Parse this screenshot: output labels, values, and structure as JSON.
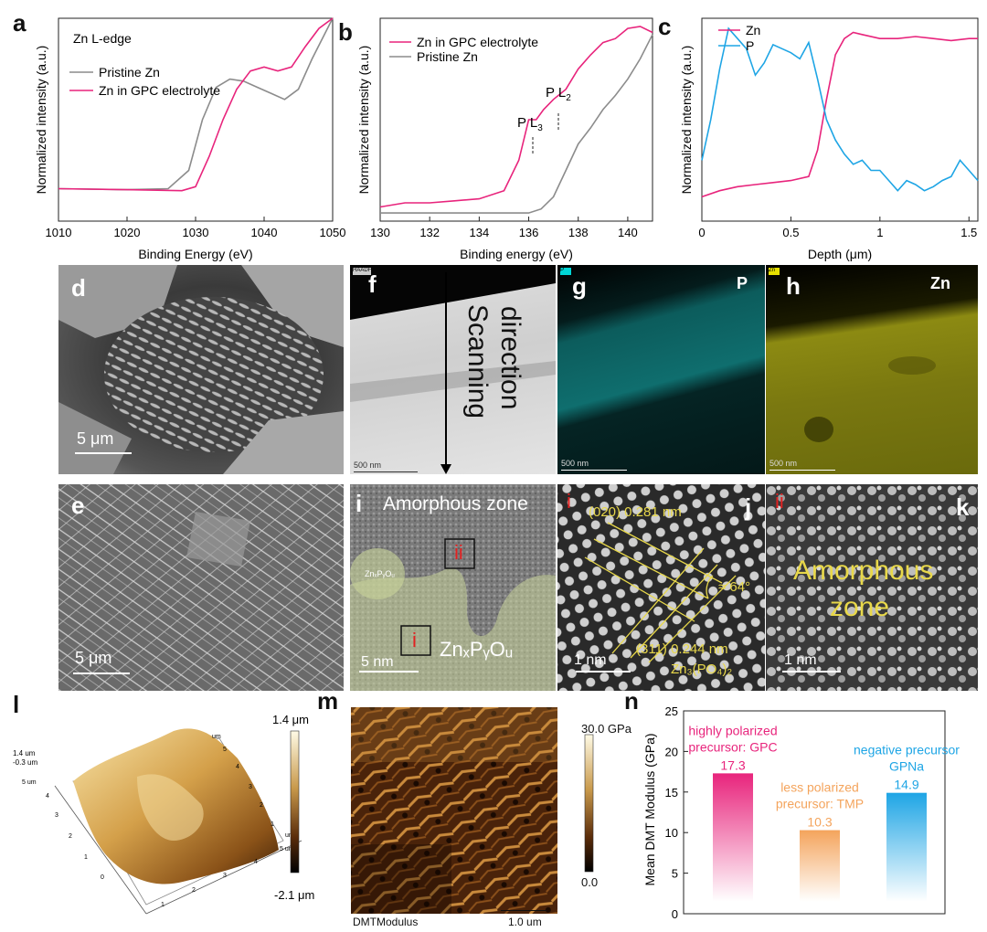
{
  "panels": {
    "a": "a",
    "b": "b",
    "c": "c",
    "d": "d",
    "e": "e",
    "f": "f",
    "g": "g",
    "h": "h",
    "i": "i",
    "j": "j",
    "k": "k",
    "l": "l",
    "m": "m",
    "n": "n"
  },
  "chart_data": [
    {
      "type": "line",
      "panel": "a",
      "title": "Zn L-edge",
      "xlabel": "Binding Energy (eV)",
      "ylabel": "Normalized intensity (a.u.)",
      "xlim": [
        1010,
        1050
      ],
      "xticks": [
        "1010",
        "1020",
        "1030",
        "1040",
        "1050"
      ],
      "series": [
        {
          "name": "Pristine Zn",
          "color": "#8c8c8c",
          "x": [
            1010,
            1020,
            1026,
            1029,
            1031,
            1033,
            1035,
            1037,
            1039,
            1041,
            1043,
            1045,
            1047,
            1050
          ],
          "y": [
            0.16,
            0.155,
            0.16,
            0.25,
            0.5,
            0.66,
            0.7,
            0.69,
            0.66,
            0.63,
            0.6,
            0.65,
            0.8,
            1.0
          ]
        },
        {
          "name": "Zn in GPC electrolyte",
          "color": "#e8247c",
          "x": [
            1010,
            1020,
            1028,
            1030,
            1032,
            1034,
            1036,
            1038,
            1040,
            1042,
            1044,
            1046,
            1048,
            1050
          ],
          "y": [
            0.16,
            0.155,
            0.15,
            0.17,
            0.32,
            0.5,
            0.65,
            0.74,
            0.76,
            0.74,
            0.76,
            0.86,
            0.95,
            1.0
          ]
        }
      ]
    },
    {
      "type": "line",
      "panel": "b",
      "xlabel": "Binding energy (eV)",
      "ylabel": "Normalized intensity (a.u.)",
      "xlim": [
        130,
        141
      ],
      "xticks": [
        "130",
        "132",
        "134",
        "136",
        "138",
        "140"
      ],
      "annotations": [
        "P L",
        "3",
        "P L",
        "2"
      ],
      "series": [
        {
          "name": "Zn in GPC electrolyte",
          "color": "#e8247c",
          "x": [
            130,
            131,
            132,
            133,
            134,
            135,
            135.6,
            136.0,
            136.3,
            136.6,
            137.0,
            137.5,
            138.0,
            138.5,
            139.0,
            139.5,
            140.0,
            140.5,
            141
          ],
          "y": [
            0.07,
            0.09,
            0.09,
            0.1,
            0.11,
            0.15,
            0.3,
            0.5,
            0.5,
            0.55,
            0.6,
            0.65,
            0.75,
            0.82,
            0.88,
            0.9,
            0.95,
            0.96,
            0.93
          ]
        },
        {
          "name": "Pristine Zn",
          "color": "#8c8c8c",
          "x": [
            130,
            132,
            134,
            136,
            136.5,
            137,
            137.5,
            138,
            138.5,
            139,
            139.5,
            140,
            140.5,
            141
          ],
          "y": [
            0.04,
            0.04,
            0.04,
            0.04,
            0.06,
            0.12,
            0.25,
            0.38,
            0.46,
            0.55,
            0.62,
            0.7,
            0.8,
            0.92
          ]
        }
      ]
    },
    {
      "type": "line",
      "panel": "c",
      "xlabel": "Depth (μm)",
      "ylabel": "Normalized intensity (a.u.)",
      "xlim": [
        0,
        1.55
      ],
      "xticks": [
        "0",
        "0.5",
        "1",
        "1.5"
      ],
      "series": [
        {
          "name": "Zn",
          "color": "#e8247c",
          "x": [
            0,
            0.1,
            0.2,
            0.3,
            0.4,
            0.5,
            0.6,
            0.65,
            0.7,
            0.75,
            0.8,
            0.85,
            0.9,
            1.0,
            1.1,
            1.2,
            1.3,
            1.4,
            1.5,
            1.55
          ],
          "y": [
            0.12,
            0.15,
            0.17,
            0.18,
            0.19,
            0.2,
            0.22,
            0.35,
            0.6,
            0.82,
            0.9,
            0.93,
            0.92,
            0.9,
            0.9,
            0.91,
            0.9,
            0.89,
            0.9,
            0.9
          ]
        },
        {
          "name": "P",
          "color": "#1ea5e5",
          "x": [
            0,
            0.05,
            0.1,
            0.15,
            0.2,
            0.25,
            0.3,
            0.35,
            0.4,
            0.45,
            0.5,
            0.55,
            0.6,
            0.65,
            0.7,
            0.75,
            0.8,
            0.85,
            0.9,
            0.95,
            1.0,
            1.05,
            1.1,
            1.15,
            1.2,
            1.25,
            1.3,
            1.35,
            1.4,
            1.45,
            1.5,
            1.55
          ],
          "y": [
            0.3,
            0.5,
            0.75,
            0.95,
            0.9,
            0.85,
            0.72,
            0.78,
            0.87,
            0.85,
            0.83,
            0.8,
            0.88,
            0.7,
            0.5,
            0.4,
            0.33,
            0.28,
            0.3,
            0.25,
            0.25,
            0.2,
            0.15,
            0.2,
            0.18,
            0.15,
            0.17,
            0.2,
            0.22,
            0.3,
            0.25,
            0.2
          ]
        }
      ]
    },
    {
      "type": "bar",
      "panel": "n",
      "ylabel": "Mean DMT Modulus (GPa)",
      "ylim": [
        0,
        25
      ],
      "yticks": [
        "0",
        "5",
        "10",
        "15",
        "20",
        "25"
      ],
      "categories": [
        "highly polarized precursor: GPC",
        "less polarized precursor: TMP",
        "negative precursor GPNa"
      ],
      "values": [
        17.3,
        10.3,
        14.9
      ],
      "value_labels": [
        "17.3",
        "10.3",
        "14.9"
      ],
      "colors": [
        "#e8247c",
        "#f4a45c",
        "#1ea5e5"
      ],
      "label_lines": [
        [
          "highly polarized",
          "precursor: GPC"
        ],
        [
          "less polarized",
          "precursor: TMP"
        ],
        [
          "negative precursor",
          "GPNa"
        ]
      ]
    }
  ],
  "images": {
    "d_scale": "5 μm",
    "e_scale": "5 μm",
    "f_tag": "HAADF",
    "f_text_1": "Scanning",
    "f_text_2": "direction",
    "f_scale": "500 nm",
    "g_tag": "P",
    "g_label": "P",
    "g_scale": "500 nm",
    "h_tag": "Zn",
    "h_label": "Zn",
    "h_scale": "500 nm",
    "i_zone": "Amorphous zone",
    "i_small": "ZnₓPᵧOᵤ",
    "i_box1": "i",
    "i_box2": "ii",
    "i_phase": "ZnₓPᵧOᵤ",
    "i_scale": "5 nm",
    "j_marker": "i",
    "j_020": "(020) 0.281 nm",
    "j_angle": "≈ 64°",
    "j_311": "(311) 0.244 nm",
    "j_phase": "Zn₃(PO₄)₂",
    "j_scale": "1 nm",
    "k_marker": "ii",
    "k_zone1": "Amorphous",
    "k_zone2": "zone",
    "k_scale": "1 nm",
    "l_top": "1.4 um",
    "l_bot": "-0.3 um",
    "l_ax": [
      "5 um",
      "4",
      "3",
      "2",
      "1",
      "0",
      "1",
      "2",
      "3",
      "4",
      "5 um",
      "um",
      "um",
      "5",
      "4",
      "3",
      "2",
      "1"
    ],
    "l_cbar_max": "1.4 μm",
    "l_cbar_min": "-2.1 μm",
    "m_cbar_max": "30.0 GPa",
    "m_cbar_min": "0.0",
    "m_caption": "DMTModulus",
    "m_scale": "1.0 um"
  }
}
